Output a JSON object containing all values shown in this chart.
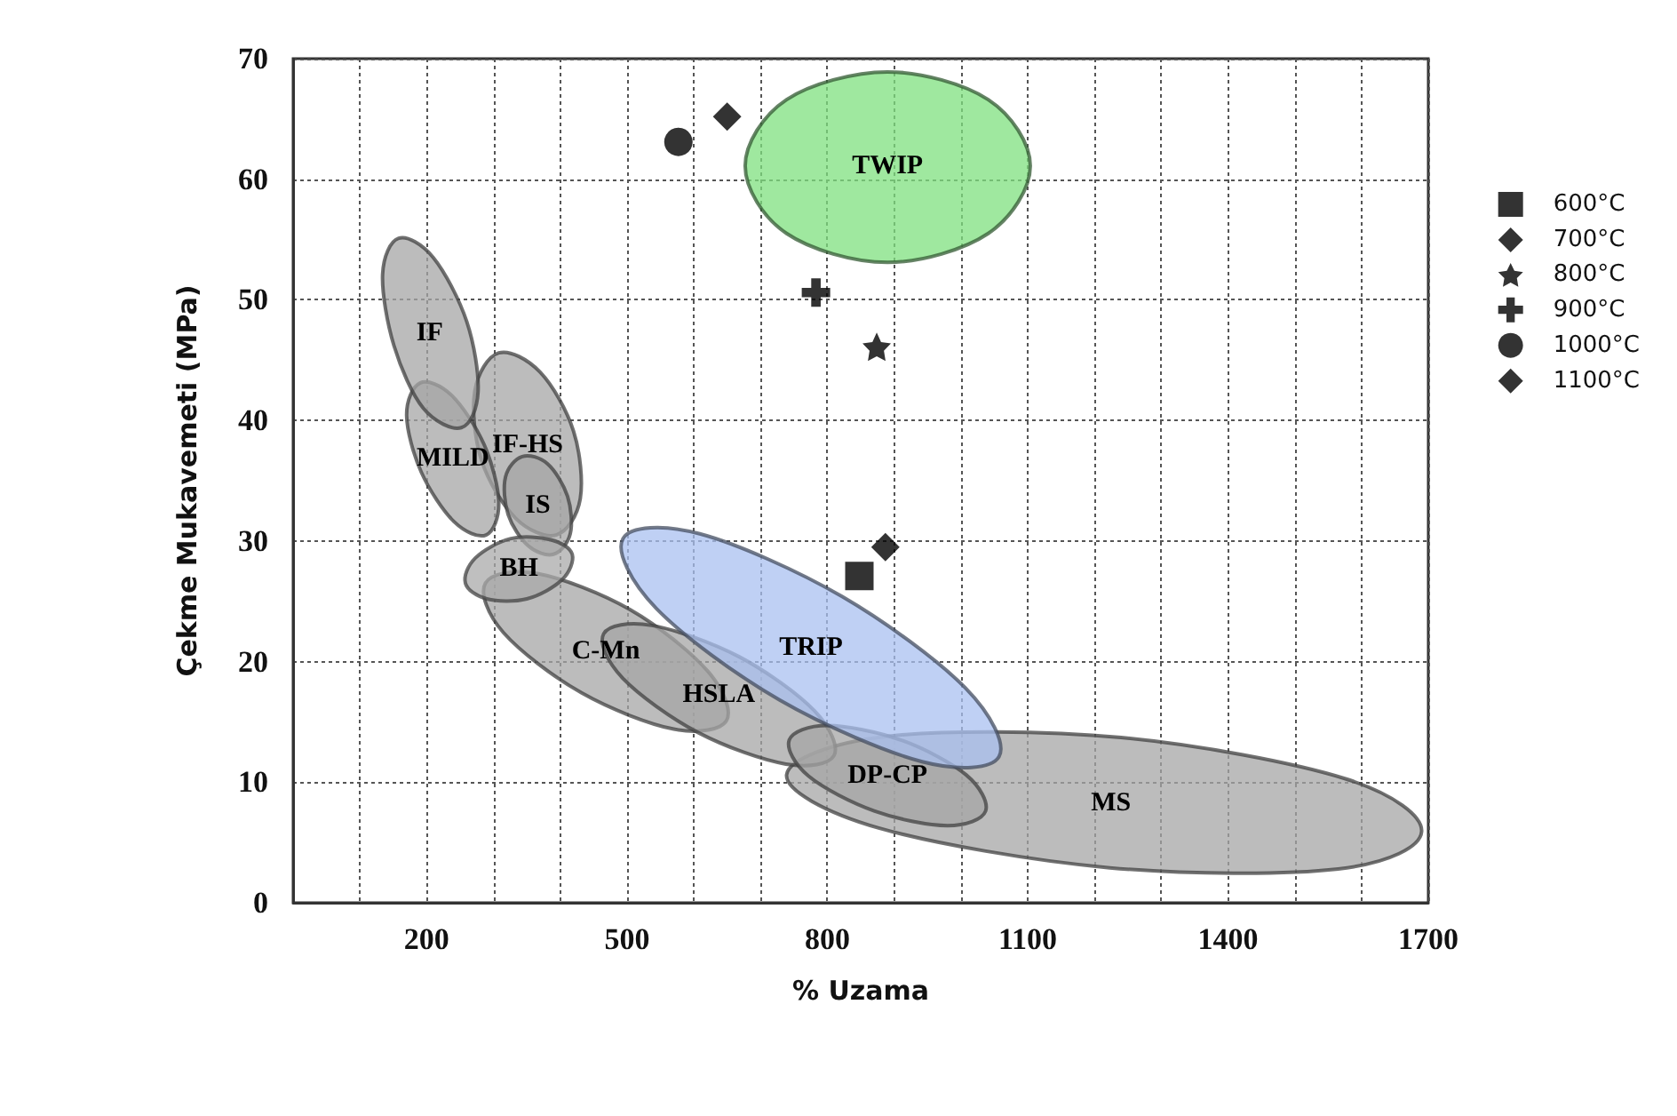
{
  "chart_data": {
    "type": "scatter",
    "xlabel": "% Uzama",
    "ylabel": "Çekme Mukavemeti (MPa)",
    "xlim": [
      0,
      1700
    ],
    "ylim": [
      0,
      70
    ],
    "xticks": [
      {
        "value": 100,
        "label": null
      },
      200,
      {
        "value": 300,
        "label": null
      },
      {
        "value": 400,
        "label": null
      },
      500,
      {
        "value": 600,
        "label": null
      },
      {
        "value": 700,
        "label": null
      },
      800,
      {
        "value": 900,
        "label": null
      },
      {
        "value": 1000,
        "label": null
      },
      1100,
      {
        "value": 1200,
        "label": null
      },
      {
        "value": 1300,
        "label": null
      },
      1400,
      {
        "value": 1500,
        "label": null
      },
      {
        "value": 1600,
        "label": null
      },
      1700
    ],
    "yticks": [
      0,
      10,
      20,
      30,
      40,
      50,
      60,
      70
    ],
    "grid": true,
    "legend": "right",
    "series": [
      {
        "name": "MS",
        "type": "area",
        "color": "#a6a6a6",
        "x": [
          1690,
          1565,
          1223,
          877,
          739,
          889,
          1240,
          1575
        ],
        "values": [
          5.9,
          2.8,
          2.9,
          6.2,
          10.6,
          13.8,
          13.7,
          10.3
        ]
      },
      {
        "name": "C-Mn",
        "type": "area",
        "color": "#a6a6a6",
        "x": [
          649,
          570,
          432,
          315,
          288,
          366,
          505,
          621
        ],
        "values": [
          15.1,
          14.4,
          17.4,
          22.4,
          26.5,
          27.3,
          24.3,
          19.2
        ]
      },
      {
        "name": "HSLA",
        "type": "area",
        "color": "#a6a6a6",
        "x": [
          810,
          738,
          607,
          494,
          465,
          537,
          668,
          781
        ],
        "values": [
          12.2,
          11.5,
          14.1,
          18.6,
          22.3,
          23.0,
          20.4,
          15.9
        ]
      },
      {
        "name": "DP-CP",
        "type": "area",
        "color": "#a6a6a6",
        "x": [
          1037,
          980,
          871,
          772,
          743,
          800,
          910,
          1008
        ],
        "values": [
          7.6,
          6.4,
          7.6,
          10.5,
          13.5,
          14.7,
          13.5,
          10.6
        ]
      },
      {
        "name": "IF-HS",
        "type": "area",
        "color": "#a6a6a6",
        "x": [
          394,
          333,
          282,
          272,
          308,
          370,
          420,
          430
        ],
        "values": [
          30.5,
          31.9,
          36.7,
          42.4,
          45.6,
          44.0,
          39.1,
          33.5
        ]
      },
      {
        "name": "IS",
        "type": "area",
        "color": "#a6a6a6",
        "x": [
          390,
          352,
          322,
          318,
          343,
          381,
          411,
          415
        ],
        "values": [
          28.9,
          29.6,
          32.2,
          35.3,
          37.0,
          36.4,
          33.7,
          30.6
        ]
      },
      {
        "name": "MILD",
        "type": "area",
        "color": "#a6a6a6",
        "x": [
          289,
          241,
          192,
          170,
          190,
          237,
          286,
          308
        ],
        "values": [
          30.5,
          31.6,
          35.7,
          40.4,
          43.1,
          42.1,
          38.0,
          33.2
        ]
      },
      {
        "name": "IF",
        "type": "area",
        "color": "#a6a6a6",
        "x": [
          252,
          195,
          151,
          134,
          158,
          210,
          260,
          277
        ],
        "values": [
          39.4,
          41.0,
          46.2,
          52.1,
          55.1,
          53.5,
          48.2,
          42.4
        ]
      },
      {
        "name": "BH",
        "type": "area",
        "color": "#a9a9a9",
        "x": [
          418,
          403,
          350,
          290,
          258,
          273,
          326,
          386
        ],
        "values": [
          28.9,
          26.8,
          25.2,
          25.2,
          26.5,
          28.6,
          30.2,
          30.1
        ]
      },
      {
        "name": "TRIP",
        "type": "area",
        "color": "#a9c0f0",
        "x": [
          1057,
          942,
          729,
          544,
          494,
          609,
          822,
          1007
        ],
        "values": [
          12.1,
          11.7,
          16.8,
          24.4,
          30.2,
          30.6,
          25.4,
          17.8
        ]
      },
      {
        "name": "TWIP",
        "type": "area",
        "color": "#7fe07f",
        "x": [
          1104,
          1041,
          890,
          739,
          677,
          739,
          890,
          1041
        ],
        "values": [
          61.1,
          55.5,
          53.1,
          55.5,
          61.1,
          66.6,
          68.9,
          66.6
        ]
      },
      {
        "name": "600°C",
        "type": "scatter",
        "marker": "square",
        "color": "#000000",
        "x": [
          848
        ],
        "values": [
          27.1
        ]
      },
      {
        "name": "700°C",
        "type": "scatter",
        "marker": "diamond",
        "color": "#000000",
        "x": [
          887
        ],
        "values": [
          29.5
        ]
      },
      {
        "name": "800°C",
        "type": "scatter",
        "marker": "star",
        "color": "#000000",
        "x": [
          874
        ],
        "values": [
          46.1
        ]
      },
      {
        "name": "900°C",
        "type": "scatter",
        "marker": "cross",
        "color": "#000000",
        "x": [
          783
        ],
        "values": [
          50.6
        ]
      },
      {
        "name": "1000°C",
        "type": "scatter",
        "marker": "circle",
        "color": "#000000",
        "x": [
          577
        ],
        "values": [
          63.1
        ]
      },
      {
        "name": "1100°C",
        "type": "scatter",
        "marker": "diamond",
        "color": "#000000",
        "x": [
          650
        ],
        "values": [
          65.2
        ]
      }
    ]
  }
}
